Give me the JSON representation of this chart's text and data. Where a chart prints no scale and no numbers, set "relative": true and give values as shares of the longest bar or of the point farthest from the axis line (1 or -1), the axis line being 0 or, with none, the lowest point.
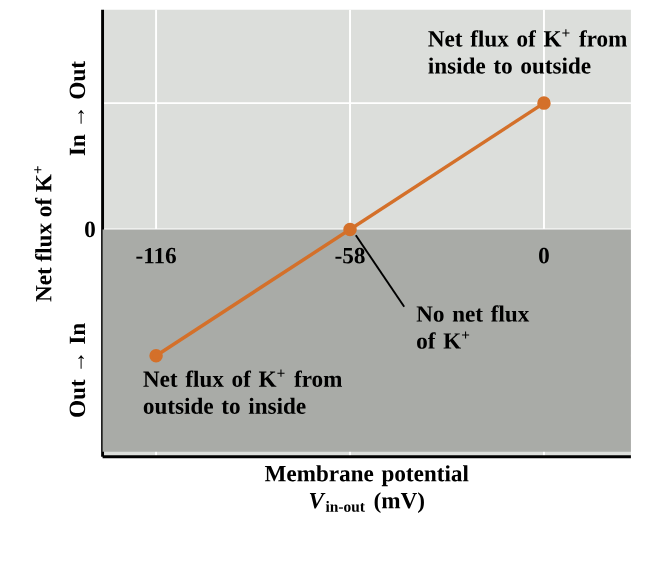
{
  "chart_data": {
    "type": "line",
    "relative": true,
    "xlabel": "Membrane potential *V*$_{in-out}$ (mV)",
    "ylabel": "Net flux of K$^{+}$",
    "x": [
      -116,
      -58,
      0
    ],
    "values": [
      -1,
      0,
      1
    ],
    "color": "#d4702a",
    "marker": "circle",
    "line_style": "solid",
    "grid": true,
    "xlim": [
      -132,
      26
    ],
    "xticks": [
      -116,
      -58,
      0
    ],
    "bands": [
      {
        "axis": "y",
        "from": -1.76,
        "to": 0,
        "color": "#a9aba7"
      }
    ],
    "annotations": [
      "In → Out",
      "Out → In",
      "0",
      {
        "text": "Net flux of K$^{+}$ from inside to outside",
        "x": 0,
        "y": 1
      },
      {
        "text": "No net flux of K$^{+}$",
        "x": -58,
        "y": 0
      },
      {
        "text": "Net flux of K$^{+}$ from outside to inside",
        "x": -116,
        "y": -1
      }
    ]
  }
}
